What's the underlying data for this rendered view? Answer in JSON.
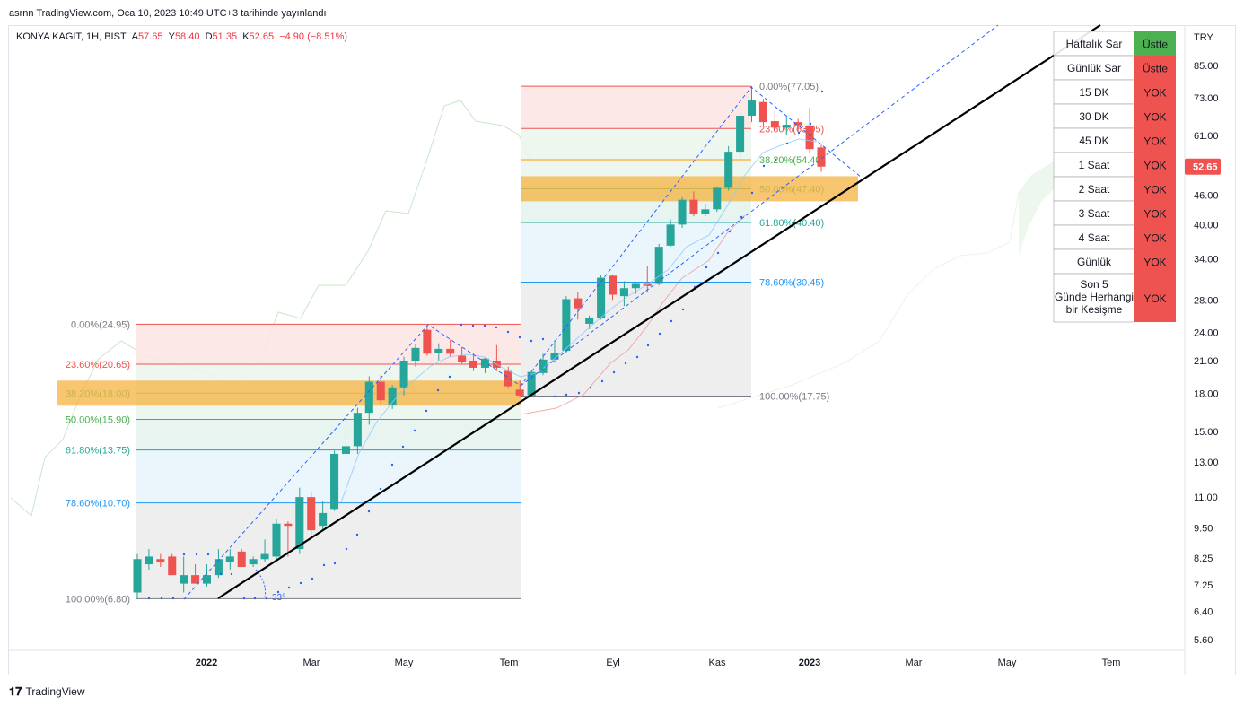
{
  "header": {
    "published": "asrnn TradingView.com, Oca 10, 2023 10:49 UTC+3 tarihinde yayınlandı"
  },
  "legend": {
    "symbol": "KONYA KAGIT, 1H, BIST",
    "o_label": "A",
    "o": "57.65",
    "h_label": "Y",
    "h": "58.40",
    "d_label": "D",
    "d": "51.35",
    "k_label": "K",
    "k": "52.65",
    "change": "−4.90 (−8.51%)"
  },
  "footer": {
    "brand": "TradingView"
  },
  "colors": {
    "up": "#26a69a",
    "down": "#ef5350",
    "trend": "#000000",
    "fan": "#2962ff",
    "ok": "#4caf50",
    "no": "#ef5350"
  },
  "chart_data": {
    "type": "candlestick",
    "currency": "TRY",
    "scale": "log",
    "ylim": [
      5.3,
      110
    ],
    "y_ticks": [
      "85.00",
      "73.00",
      "61.00",
      "53.00",
      "46.00",
      "40.00",
      "34.00",
      "28.00",
      "24.00",
      "21.00",
      "18.00",
      "15.00",
      "13.00",
      "11.00",
      "9.50",
      "8.25",
      "7.25",
      "6.40",
      "5.60"
    ],
    "x_ticks": [
      "2022",
      "Mar",
      "May",
      "Tem",
      "Eyl",
      "Kas",
      "2023",
      "Mar",
      "May",
      "Tem"
    ],
    "last_price": "52.65",
    "candles": [
      {
        "o": 7.0,
        "h": 8.4,
        "l": 6.8,
        "c": 8.2
      },
      {
        "o": 8.0,
        "h": 8.6,
        "l": 7.8,
        "c": 8.3
      },
      {
        "o": 8.2,
        "h": 8.4,
        "l": 7.9,
        "c": 8.1
      },
      {
        "o": 8.3,
        "h": 8.4,
        "l": 7.6,
        "c": 7.6
      },
      {
        "o": 7.3,
        "h": 8.3,
        "l": 7.0,
        "c": 7.6
      },
      {
        "o": 7.6,
        "h": 8.0,
        "l": 7.3,
        "c": 7.3
      },
      {
        "o": 7.3,
        "h": 8.0,
        "l": 7.2,
        "c": 7.6
      },
      {
        "o": 7.6,
        "h": 8.6,
        "l": 7.5,
        "c": 8.2
      },
      {
        "o": 8.1,
        "h": 8.6,
        "l": 7.8,
        "c": 8.3
      },
      {
        "o": 8.5,
        "h": 8.6,
        "l": 7.9,
        "c": 7.9
      },
      {
        "o": 8.0,
        "h": 8.3,
        "l": 7.9,
        "c": 8.2
      },
      {
        "o": 8.2,
        "h": 9.0,
        "l": 8.1,
        "c": 8.4
      },
      {
        "o": 8.3,
        "h": 9.9,
        "l": 8.1,
        "c": 9.7
      },
      {
        "o": 9.7,
        "h": 9.8,
        "l": 8.3,
        "c": 9.6
      },
      {
        "o": 8.6,
        "h": 11.5,
        "l": 8.4,
        "c": 11.0
      },
      {
        "o": 11.0,
        "h": 11.3,
        "l": 9.2,
        "c": 9.4
      },
      {
        "o": 9.6,
        "h": 10.8,
        "l": 9.4,
        "c": 10.2
      },
      {
        "o": 10.4,
        "h": 13.7,
        "l": 10.3,
        "c": 13.5
      },
      {
        "o": 13.5,
        "h": 15.5,
        "l": 13.2,
        "c": 14.0
      },
      {
        "o": 14.0,
        "h": 16.8,
        "l": 13.5,
        "c": 16.4
      },
      {
        "o": 16.4,
        "h": 19.5,
        "l": 15.5,
        "c": 19.0
      },
      {
        "o": 19.0,
        "h": 19.6,
        "l": 17.0,
        "c": 17.4
      },
      {
        "o": 17.0,
        "h": 18.7,
        "l": 16.7,
        "c": 18.5
      },
      {
        "o": 18.5,
        "h": 21.4,
        "l": 17.8,
        "c": 21.0
      },
      {
        "o": 21.0,
        "h": 22.7,
        "l": 20.4,
        "c": 22.3
      },
      {
        "o": 24.3,
        "h": 24.9,
        "l": 21.5,
        "c": 21.7
      },
      {
        "o": 21.8,
        "h": 22.8,
        "l": 21.0,
        "c": 22.2
      },
      {
        "o": 22.2,
        "h": 23.2,
        "l": 21.4,
        "c": 21.7
      },
      {
        "o": 21.5,
        "h": 22.4,
        "l": 20.7,
        "c": 20.9
      },
      {
        "o": 21.0,
        "h": 21.8,
        "l": 20.0,
        "c": 20.3
      },
      {
        "o": 20.3,
        "h": 21.3,
        "l": 19.8,
        "c": 21.2
      },
      {
        "o": 21.0,
        "h": 22.6,
        "l": 20.0,
        "c": 20.3
      },
      {
        "o": 20.0,
        "h": 20.4,
        "l": 18.4,
        "c": 18.6
      },
      {
        "o": 18.3,
        "h": 19.1,
        "l": 17.7,
        "c": 17.8
      },
      {
        "o": 17.8,
        "h": 20.0,
        "l": 17.7,
        "c": 19.9
      },
      {
        "o": 19.8,
        "h": 21.7,
        "l": 19.6,
        "c": 21.1
      },
      {
        "o": 21.1,
        "h": 23.1,
        "l": 20.8,
        "c": 21.8
      },
      {
        "o": 22.0,
        "h": 28.5,
        "l": 21.8,
        "c": 28.1
      },
      {
        "o": 28.2,
        "h": 29.0,
        "l": 25.5,
        "c": 26.9
      },
      {
        "o": 25.0,
        "h": 26.0,
        "l": 24.4,
        "c": 25.7
      },
      {
        "o": 25.7,
        "h": 31.5,
        "l": 25.5,
        "c": 31.1
      },
      {
        "o": 31.4,
        "h": 31.6,
        "l": 28.0,
        "c": 28.7
      },
      {
        "o": 28.5,
        "h": 30.6,
        "l": 27.2,
        "c": 29.6
      },
      {
        "o": 29.6,
        "h": 30.5,
        "l": 28.8,
        "c": 30.2
      },
      {
        "o": 30.2,
        "h": 32.8,
        "l": 29.0,
        "c": 29.9
      },
      {
        "o": 30.2,
        "h": 36.5,
        "l": 30.0,
        "c": 36.0
      },
      {
        "o": 36.2,
        "h": 41.0,
        "l": 36.0,
        "c": 40.0
      },
      {
        "o": 40.0,
        "h": 45.5,
        "l": 39.4,
        "c": 45.0
      },
      {
        "o": 45.0,
        "h": 46.8,
        "l": 41.6,
        "c": 42.0
      },
      {
        "o": 42.0,
        "h": 44.2,
        "l": 41.6,
        "c": 43.0
      },
      {
        "o": 43.0,
        "h": 47.8,
        "l": 42.5,
        "c": 47.6
      },
      {
        "o": 47.6,
        "h": 58.0,
        "l": 47.0,
        "c": 56.5
      },
      {
        "o": 56.5,
        "h": 68.0,
        "l": 55.0,
        "c": 67.0
      },
      {
        "o": 67.0,
        "h": 77.05,
        "l": 65.0,
        "c": 72.0
      },
      {
        "o": 71.5,
        "h": 72.5,
        "l": 63.5,
        "c": 65.0
      },
      {
        "o": 65.3,
        "h": 68.5,
        "l": 62.5,
        "c": 63.3
      },
      {
        "o": 63.3,
        "h": 66.8,
        "l": 61.0,
        "c": 64.2
      },
      {
        "o": 65.0,
        "h": 66.0,
        "l": 62.3,
        "c": 64.0
      },
      {
        "o": 64.0,
        "h": 69.5,
        "l": 56.0,
        "c": 57.2
      },
      {
        "o": 57.65,
        "h": 58.4,
        "l": 51.35,
        "c": 52.65
      }
    ],
    "fib_retracements": [
      {
        "levels": [
          {
            "ratio": "0.00%",
            "price": "24.95"
          },
          {
            "ratio": "23.60%",
            "price": "20.65"
          },
          {
            "ratio": "38.20%",
            "price": "18.00"
          },
          {
            "ratio": "50.00%",
            "price": "15.90"
          },
          {
            "ratio": "61.80%",
            "price": "13.75"
          },
          {
            "ratio": "78.60%",
            "price": "10.70"
          },
          {
            "ratio": "100.00%",
            "price": "6.80"
          }
        ]
      },
      {
        "levels": [
          {
            "ratio": "0.00%",
            "price": "77.05"
          },
          {
            "ratio": "23.60%",
            "price": "63.05"
          },
          {
            "ratio": "38.20%",
            "price": "54.40"
          },
          {
            "ratio": "50.00%",
            "price": "47.40"
          },
          {
            "ratio": "61.80%",
            "price": "40.40"
          },
          {
            "ratio": "78.60%",
            "price": "30.45"
          },
          {
            "ratio": "100.00%",
            "price": "17.75"
          }
        ]
      }
    ],
    "angle_label": "33°"
  },
  "signal_table": {
    "rows": [
      {
        "label": "Haftalık Sar",
        "value": "Üstte",
        "status": "ok"
      },
      {
        "label": "Günlük Sar",
        "value": "Üstte",
        "status": "no"
      },
      {
        "label": "15 DK",
        "value": "YOK",
        "status": "no"
      },
      {
        "label": "30 DK",
        "value": "YOK",
        "status": "no"
      },
      {
        "label": "45 DK",
        "value": "YOK",
        "status": "no"
      },
      {
        "label": "1 Saat",
        "value": "YOK",
        "status": "no"
      },
      {
        "label": "2 Saat",
        "value": "YOK",
        "status": "no"
      },
      {
        "label": "3 Saat",
        "value": "YOK",
        "status": "no"
      },
      {
        "label": "4 Saat",
        "value": "YOK",
        "status": "no"
      },
      {
        "label": "Günlük",
        "value": "YOK",
        "status": "no"
      },
      {
        "label": "Son 5 Günde Herhangi bir Kesişme",
        "value": "YOK",
        "status": "no"
      }
    ]
  }
}
